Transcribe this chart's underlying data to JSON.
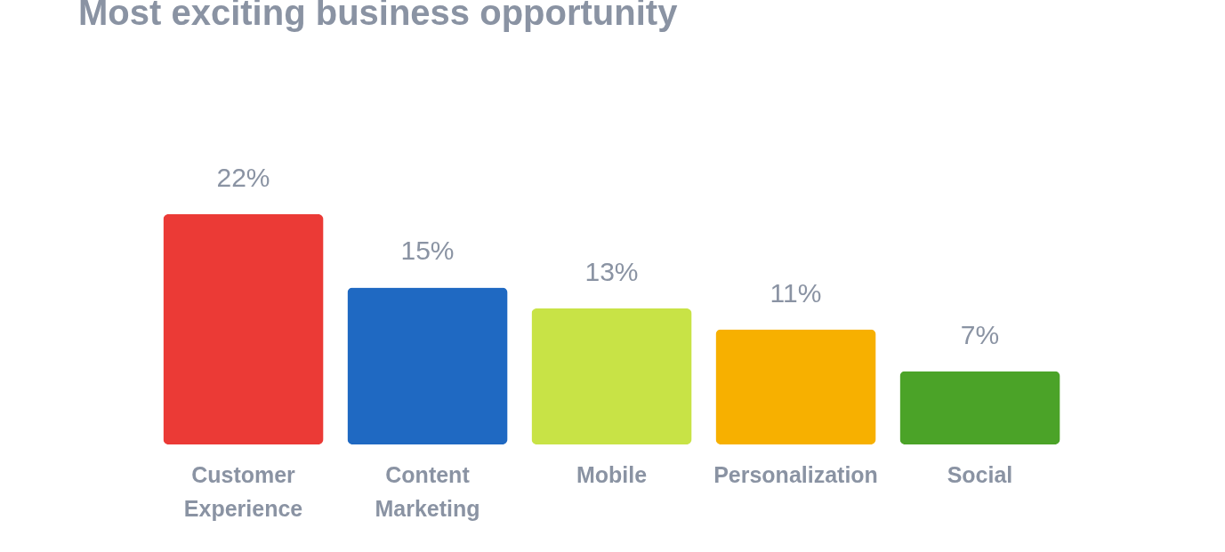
{
  "chart_data": {
    "type": "bar",
    "title": "Most exciting business opportunity",
    "categories": [
      "Customer Experience",
      "Content Marketing",
      "Mobile",
      "Personalization",
      "Social"
    ],
    "values": [
      22,
      15,
      13,
      11,
      7
    ],
    "value_labels": [
      "22%",
      "15%",
      "13%",
      "11%",
      "7%"
    ],
    "colors": [
      "#eb3a36",
      "#1f69c2",
      "#c8e346",
      "#f7b000",
      "#4ba328"
    ],
    "grid": false,
    "legend": false
  }
}
